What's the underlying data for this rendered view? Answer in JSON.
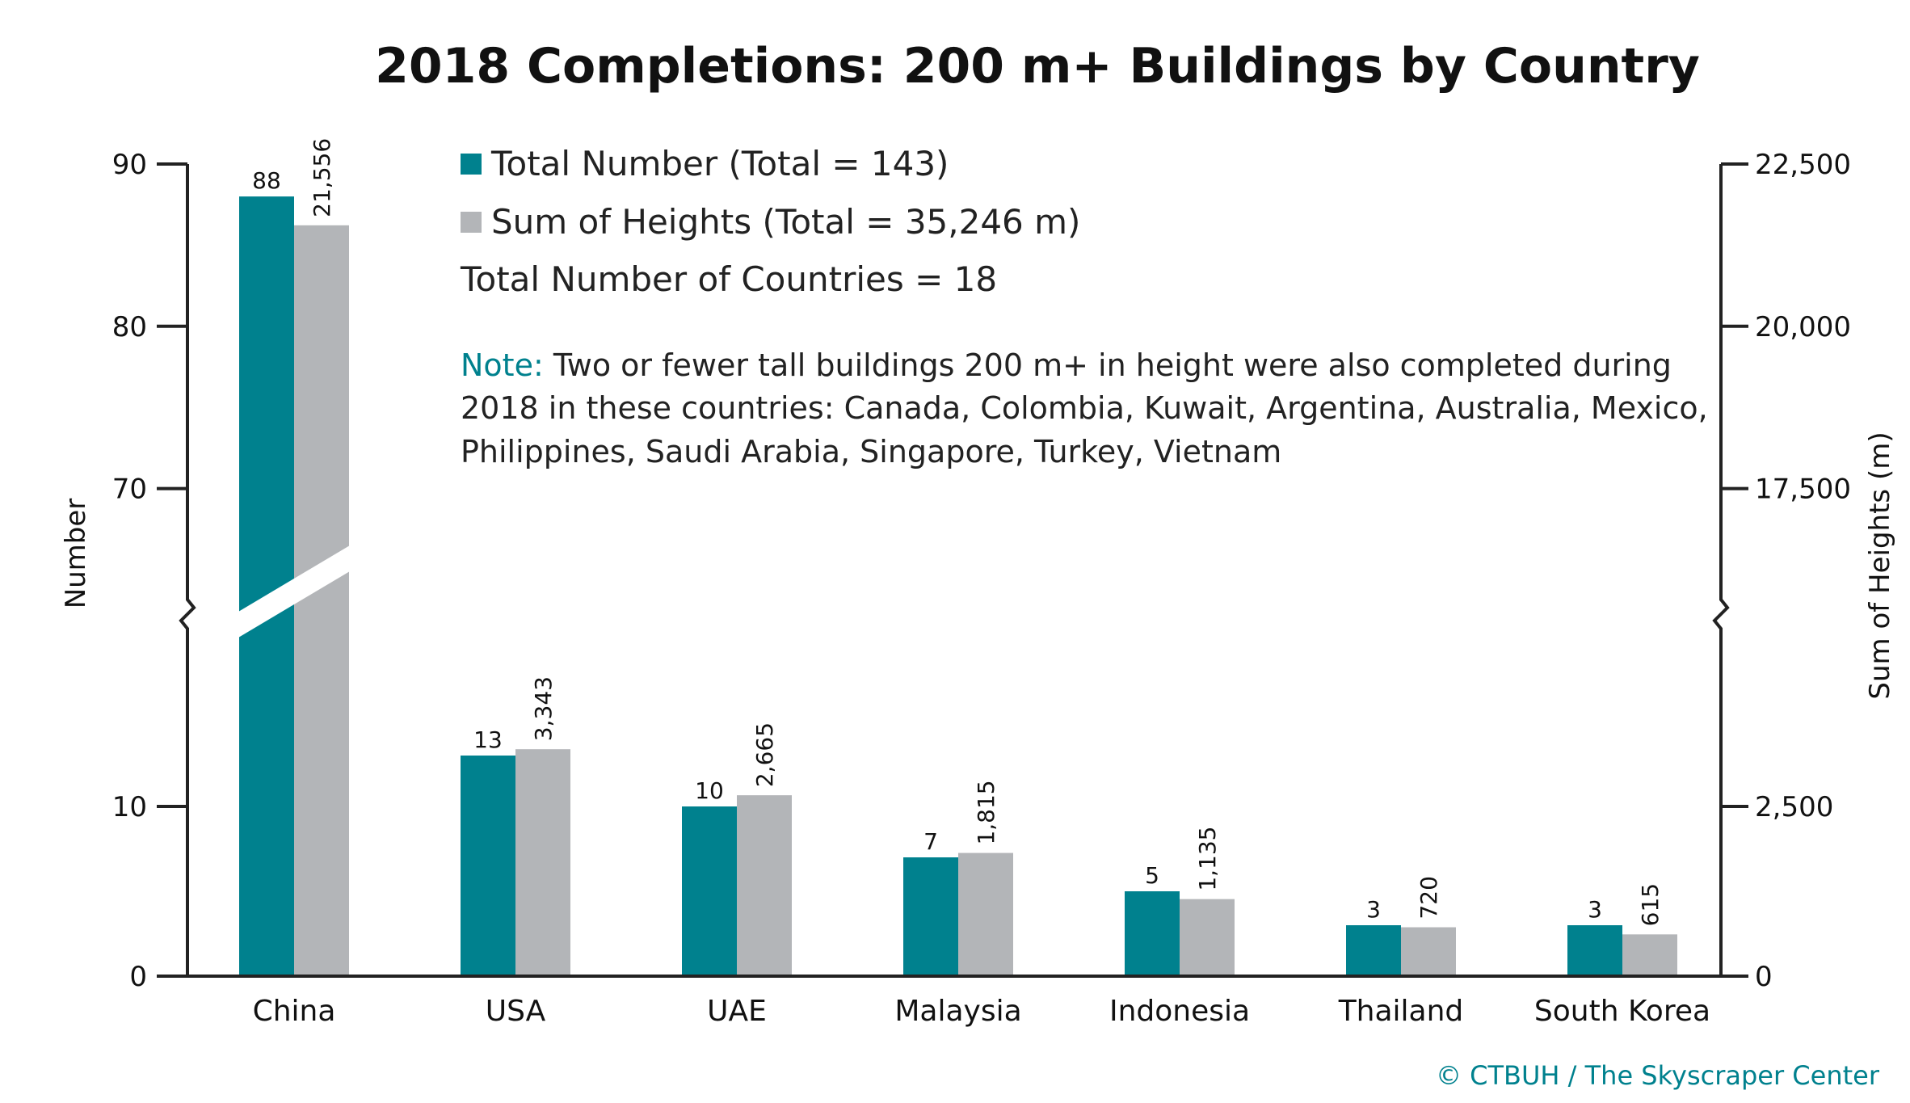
{
  "chart_data": {
    "type": "bar",
    "title": "2018 Completions: 200 m+ Buildings by Country",
    "categories": [
      "China",
      "USA",
      "UAE",
      "Malaysia",
      "Indonesia",
      "Thailand",
      "South Korea"
    ],
    "series": [
      {
        "name": "Total Number (Total = 143)",
        "values": [
          88,
          13,
          10,
          7,
          5,
          3,
          3
        ],
        "labels": [
          "88",
          "13",
          "10",
          "7",
          "5",
          "3",
          "3"
        ],
        "color": "#00818e"
      },
      {
        "name": "Sum of Heights (Total = 35,246 m)",
        "values": [
          21556,
          3343,
          2665,
          1815,
          1135,
          720,
          615
        ],
        "labels": [
          "21,556",
          "3,343",
          "2,665",
          "1,815",
          "1,135",
          "720",
          "615"
        ],
        "color": "#b3b5b8"
      }
    ],
    "ylabel_left": "Number",
    "ylabel_right": "Sum of Heights (m)",
    "left_ticks": [
      "0",
      "10",
      "70",
      "80",
      "90"
    ],
    "right_ticks": [
      "0",
      "2,500",
      "17,500",
      "20,000",
      "22,500"
    ],
    "axis_break": {
      "left": [
        20,
        65
      ],
      "right": [
        5000,
        16250
      ]
    },
    "ylim_left": [
      0,
      90
    ],
    "ylim_right": [
      0,
      22500
    ],
    "legend_position": "top",
    "annotations": {
      "countries": "Total Number of Countries = 18",
      "note_label": "Note:",
      "note_lines": [
        " Two or fewer tall buildings 200 m+ in height were also completed during",
        "2018 in these countries: Canada, Colombia, Kuwait, Argentina, Australia, Mexico,",
        "Philippines, Saudi Arabia, Singapore, Turkey, Vietnam"
      ]
    },
    "source": "© CTBUH / The Skyscraper Center"
  }
}
